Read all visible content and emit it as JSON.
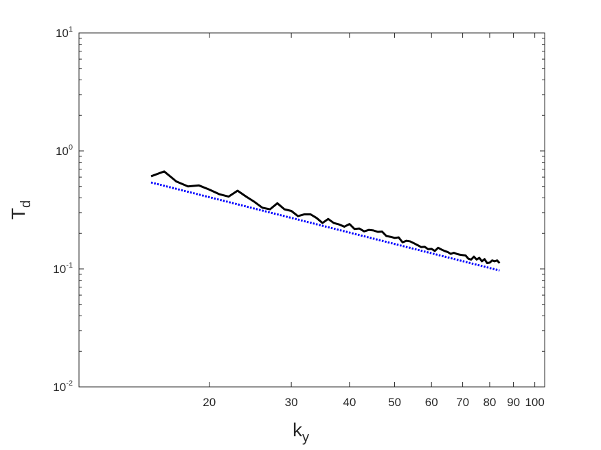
{
  "chart_data": {
    "type": "line",
    "scale": {
      "x": "log",
      "y": "log"
    },
    "xlim": [
      10.5,
      105
    ],
    "ylim": [
      0.01,
      10
    ],
    "grid": false,
    "legend": "none",
    "x_axis": {
      "label_main": "k",
      "label_sub": "y",
      "ticks": [
        {
          "value": 20,
          "label": "20"
        },
        {
          "value": 30,
          "label": "30"
        },
        {
          "value": 40,
          "label": "40"
        },
        {
          "value": 50,
          "label": "50"
        },
        {
          "value": 60,
          "label": "60"
        },
        {
          "value": 70,
          "label": "70"
        },
        {
          "value": 80,
          "label": "80"
        },
        {
          "value": 90,
          "label": "90"
        },
        {
          "value": 100,
          "label": "100"
        }
      ]
    },
    "y_axis": {
      "label_main": "T",
      "label_sub": "d",
      "ticks": [
        {
          "value": 0.01,
          "base": "10",
          "exp": "-2"
        },
        {
          "value": 0.1,
          "base": "10",
          "exp": "-1"
        },
        {
          "value": 1,
          "base": "10",
          "exp": "0"
        },
        {
          "value": 10,
          "base": "10",
          "exp": "1"
        }
      ]
    },
    "series": [
      {
        "style": "solid",
        "color": "#000000",
        "x": [
          15,
          16,
          17,
          18,
          19,
          20,
          21,
          22,
          23,
          24,
          25,
          26,
          27,
          28,
          29,
          30,
          31,
          32,
          33,
          34,
          35,
          36,
          37,
          38,
          39,
          40,
          41,
          42,
          43,
          44,
          45,
          46,
          47,
          48,
          49,
          50,
          51,
          52,
          53,
          54,
          55,
          56,
          57,
          58,
          59,
          60,
          61,
          62,
          63,
          64,
          65,
          66,
          67,
          68,
          69,
          70,
          71,
          72,
          73,
          74,
          75,
          76,
          77,
          78,
          79,
          80,
          81,
          82,
          83,
          84
        ],
        "y": [
          0.61,
          0.67,
          0.55,
          0.5,
          0.51,
          0.47,
          0.43,
          0.41,
          0.46,
          0.41,
          0.37,
          0.33,
          0.32,
          0.36,
          0.32,
          0.31,
          0.28,
          0.29,
          0.29,
          0.27,
          0.245,
          0.265,
          0.245,
          0.238,
          0.228,
          0.24,
          0.218,
          0.22,
          0.208,
          0.214,
          0.212,
          0.206,
          0.207,
          0.19,
          0.187,
          0.183,
          0.185,
          0.168,
          0.173,
          0.171,
          0.165,
          0.159,
          0.153,
          0.154,
          0.147,
          0.148,
          0.142,
          0.151,
          0.146,
          0.142,
          0.139,
          0.134,
          0.137,
          0.134,
          0.132,
          0.131,
          0.13,
          0.122,
          0.12,
          0.127,
          0.12,
          0.124,
          0.116,
          0.121,
          0.112,
          0.113,
          0.118,
          0.116,
          0.118,
          0.112
        ]
      },
      {
        "style": "dotted",
        "color": "#0000ff",
        "x": [
          15,
          84
        ],
        "y": [
          0.54,
          0.097
        ]
      }
    ]
  }
}
